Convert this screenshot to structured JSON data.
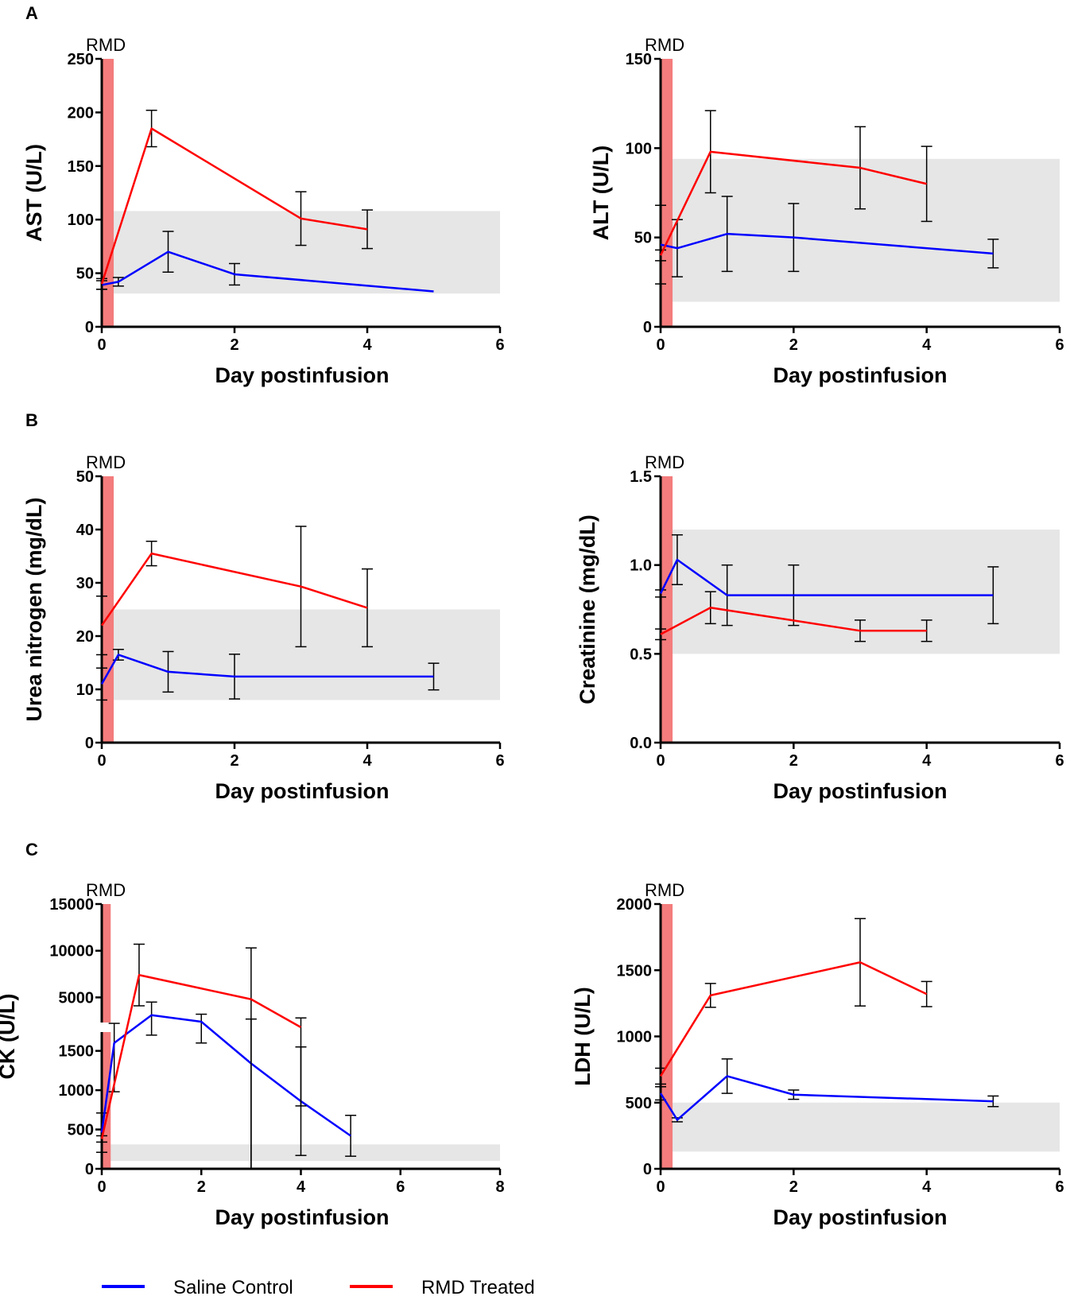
{
  "figure": {
    "panel_letters": [
      "A",
      "B",
      "C"
    ],
    "rmd_label": "RMD",
    "series_colors": {
      "saline": "#0000ff",
      "rmd": "#ff0000"
    },
    "band_color": "#e6e6e6",
    "rmd_bar_color": "#f47c7c",
    "errorbar_color": "#000000"
  },
  "legend": {
    "saline_label": "Saline Control",
    "rmd_label": "RMD Treated"
  },
  "chart_data": [
    {
      "id": "ast",
      "type": "line",
      "panel": "A",
      "title": "",
      "xlabel": "Day postinfusion",
      "ylabel": "AST (U/L)",
      "xlim": [
        0,
        6
      ],
      "ylim": [
        0,
        250
      ],
      "xticks": [
        0,
        2,
        4,
        6
      ],
      "yticks": [
        0,
        50,
        100,
        150,
        200,
        250
      ],
      "reference_band": [
        31,
        108
      ],
      "rmd_bar_days": [
        0,
        0.18
      ],
      "series": [
        {
          "name": "Saline Control",
          "key": "saline",
          "x": [
            0,
            0.25,
            1,
            2,
            5
          ],
          "y": [
            39,
            42,
            70,
            49,
            33
          ],
          "err": [
            4,
            4,
            19,
            10,
            0
          ]
        },
        {
          "name": "RMD Treated",
          "key": "rmd",
          "x": [
            0,
            0.75,
            3,
            4
          ],
          "y": [
            40,
            185,
            101,
            91
          ],
          "err": [
            5,
            17,
            25,
            18
          ]
        }
      ]
    },
    {
      "id": "alt",
      "type": "line",
      "panel": "A",
      "title": "",
      "xlabel": "Day postinfusion",
      "ylabel": "ALT (U/L)",
      "xlim": [
        0,
        6
      ],
      "ylim": [
        0,
        150
      ],
      "xticks": [
        0,
        2,
        4,
        6
      ],
      "yticks": [
        0,
        50,
        100,
        150
      ],
      "reference_band": [
        14,
        94
      ],
      "rmd_bar_days": [
        0,
        0.18
      ],
      "series": [
        {
          "name": "Saline Control",
          "key": "saline",
          "x": [
            0,
            0.25,
            1,
            2,
            5
          ],
          "y": [
            46,
            44,
            52,
            50,
            41
          ],
          "err": [
            22,
            16,
            21,
            19,
            8
          ]
        },
        {
          "name": "RMD Treated",
          "key": "rmd",
          "x": [
            0,
            0.75,
            3,
            4
          ],
          "y": [
            40,
            98,
            89,
            80
          ],
          "err": [
            3,
            23,
            23,
            21
          ]
        }
      ]
    },
    {
      "id": "bun",
      "type": "line",
      "panel": "B",
      "title": "",
      "xlabel": "Day postinfusion",
      "ylabel": "Urea nitrogen (mg/dL)",
      "xlim": [
        0,
        6
      ],
      "ylim": [
        0,
        50
      ],
      "xticks": [
        0,
        2,
        4,
        6
      ],
      "yticks": [
        0,
        10,
        20,
        30,
        40,
        50
      ],
      "reference_band": [
        8,
        25
      ],
      "rmd_bar_days": [
        0,
        0.18
      ],
      "series": [
        {
          "name": "Saline Control",
          "key": "saline",
          "x": [
            0,
            0.25,
            1,
            2,
            5
          ],
          "y": [
            11,
            16.5,
            13.3,
            12.4,
            12.4
          ],
          "err": [
            3,
            1,
            3.8,
            4.2,
            2.5
          ]
        },
        {
          "name": "RMD Treated",
          "key": "rmd",
          "x": [
            0,
            0.75,
            3,
            4
          ],
          "y": [
            22,
            35.5,
            29.3,
            25.3
          ],
          "err": [
            5.5,
            2.3,
            11.3,
            7.3
          ]
        }
      ]
    },
    {
      "id": "creatinine",
      "type": "line",
      "panel": "B",
      "title": "",
      "xlabel": "Day postinfusion",
      "ylabel": "Creatinine (mg/dL)",
      "xlim": [
        0,
        6
      ],
      "ylim": [
        0,
        1.5
      ],
      "xticks": [
        0,
        2,
        4,
        6
      ],
      "yticks": [
        0.0,
        0.5,
        1.0,
        1.5
      ],
      "ytick_labels": [
        "0.0",
        "0.5",
        "1.0",
        "1.5"
      ],
      "reference_band": [
        0.5,
        1.2
      ],
      "rmd_bar_days": [
        0,
        0.18
      ],
      "series": [
        {
          "name": "Saline Control",
          "key": "saline",
          "x": [
            0,
            0.25,
            1,
            2,
            5
          ],
          "y": [
            0.84,
            1.03,
            0.83,
            0.83,
            0.83
          ],
          "err": [
            0.02,
            0.14,
            0.17,
            0.17,
            0.16
          ]
        },
        {
          "name": "RMD Treated",
          "key": "rmd",
          "x": [
            0,
            0.75,
            3,
            4
          ],
          "y": [
            0.61,
            0.76,
            0.63,
            0.63
          ],
          "err": [
            0.03,
            0.09,
            0.06,
            0.06
          ]
        }
      ]
    },
    {
      "id": "ck",
      "type": "line",
      "panel": "C",
      "title": "",
      "xlabel": "Day postinfusion",
      "ylabel": "CK (U/L)",
      "xlim": [
        0,
        8
      ],
      "ylim": [
        0,
        15000
      ],
      "axis_break": {
        "lower": [
          0,
          1800
        ],
        "upper": [
          1800,
          15000
        ]
      },
      "xticks": [
        0,
        2,
        4,
        6,
        8
      ],
      "yticks_lower": [
        0,
        500,
        1000,
        1500
      ],
      "yticks_upper": [
        5000,
        10000,
        15000
      ],
      "reference_band": [
        100,
        310
      ],
      "rmd_bar_days": [
        0,
        0.18
      ],
      "series": [
        {
          "name": "Saline Control",
          "key": "saline",
          "x": [
            0,
            0.25,
            1,
            2,
            3,
            4,
            5
          ],
          "y": [
            460,
            1600,
            3100,
            2400,
            1340,
            860,
            420
          ],
          "err": [
            250,
            620,
            1400,
            800,
            1340,
            690,
            260
          ]
        },
        {
          "name": "RMD Treated",
          "key": "rmd",
          "x": [
            0,
            0.75,
            3,
            4
          ],
          "y": [
            380,
            7400,
            4800,
            1800
          ],
          "err": [
            40,
            3300,
            5500,
            1000
          ]
        }
      ]
    },
    {
      "id": "ldh",
      "type": "line",
      "panel": "C",
      "title": "",
      "xlabel": "Day postinfusion",
      "ylabel": "LDH (U/L)",
      "xlim": [
        0,
        6
      ],
      "ylim": [
        0,
        2000
      ],
      "xticks": [
        0,
        2,
        4,
        6
      ],
      "yticks": [
        0,
        500,
        1000,
        1500,
        2000
      ],
      "reference_band": [
        130,
        500
      ],
      "rmd_bar_days": [
        0,
        0.18
      ],
      "series": [
        {
          "name": "Saline Control",
          "key": "saline",
          "x": [
            0,
            0.25,
            1,
            2,
            5
          ],
          "y": [
            570,
            370,
            700,
            560,
            510
          ],
          "err": [
            50,
            15,
            130,
            35,
            40
          ]
        },
        {
          "name": "RMD Treated",
          "key": "rmd",
          "x": [
            0,
            0.75,
            3,
            4
          ],
          "y": [
            700,
            1310,
            1560,
            1320
          ],
          "err": [
            60,
            90,
            330,
            95
          ]
        }
      ]
    }
  ]
}
